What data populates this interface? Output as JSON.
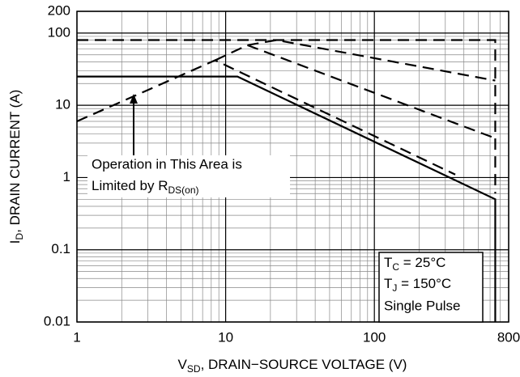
{
  "chart_data": {
    "type": "line",
    "xlabel": {
      "main": "V",
      "sub": "SD",
      "rest": ", DRAIN−SOURCE VOLTAGE (V)"
    },
    "ylabel": {
      "main": "I",
      "sub": "D",
      "rest": ", DRAIN CURRENT (A)"
    },
    "log_x": true,
    "log_y": true,
    "grid": true,
    "xlim": [
      1,
      800
    ],
    "ylim": [
      0.01,
      200
    ],
    "xticks": [
      1,
      10,
      100,
      800
    ],
    "yticks": [
      0.01,
      0.1,
      1,
      10,
      100,
      200
    ],
    "xminorticks": [
      2,
      3,
      4,
      5,
      6,
      7,
      8,
      9,
      20,
      30,
      40,
      50,
      60,
      70,
      80,
      90,
      200,
      300,
      400,
      500,
      600,
      700
    ],
    "yminorticks": [
      0.02,
      0.03,
      0.04,
      0.05,
      0.06,
      0.07,
      0.08,
      0.09,
      0.2,
      0.3,
      0.4,
      0.5,
      0.6,
      0.7,
      0.8,
      0.9,
      2,
      3,
      4,
      5,
      6,
      7,
      8,
      9,
      20,
      30,
      40,
      50,
      60,
      70,
      80,
      90
    ],
    "series": [
      {
        "style": "solid",
        "color": "#000000",
        "x": [
          1,
          12,
          650,
          650
        ],
        "values": [
          25,
          25,
          0.5,
          0.01
        ]
      },
      {
        "style": "dashed",
        "color": "#000000",
        "x": [
          1,
          650,
          650
        ],
        "values": [
          80,
          80,
          0.6
        ]
      },
      {
        "style": "dashed",
        "color": "#000000",
        "x": [
          1,
          8.5,
          350
        ],
        "values": [
          6,
          42,
          1.1
        ]
      },
      {
        "style": "dashed",
        "color": "#000000",
        "x": [
          8.5,
          14,
          650
        ],
        "values": [
          42,
          68,
          3.5
        ]
      },
      {
        "style": "dashed",
        "color": "#000000",
        "x": [
          14,
          22,
          650
        ],
        "values": [
          68,
          80,
          22
        ]
      }
    ],
    "annotation": {
      "line1": "Operation in This Area is",
      "line2_main": "Limited by R",
      "line2_sub": "DS(on)"
    },
    "conditions": {
      "tc_main": "T",
      "tc_sub": "C",
      "tc_rest": " = 25°C",
      "tj_main": "T",
      "tj_sub": "J",
      "tj_rest": " = 150°C",
      "pulse": "Single Pulse"
    }
  }
}
